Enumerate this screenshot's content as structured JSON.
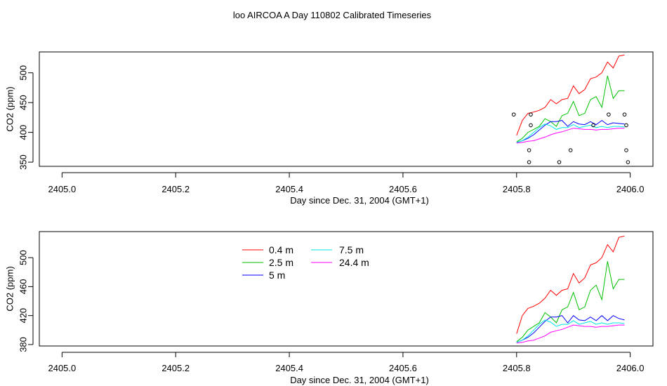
{
  "title": "loo AIRCOA A  Day 110802  Calibrated Timeseries",
  "chart_data": [
    {
      "type": "line",
      "xlabel": "Day since Dec. 31, 2004 (GMT+1)",
      "ylabel": "CO2 (ppm)",
      "xlim": [
        2404.96,
        2406.04
      ],
      "ylim": [
        343,
        535
      ],
      "xticks": [
        "2405.0",
        "2405.2",
        "2405.4",
        "2405.6",
        "2405.8",
        "2406.0"
      ],
      "yticks": [
        "350",
        "400",
        "450",
        "500"
      ],
      "colors": [
        "#ff0000",
        "#00c000",
        "#0000ff",
        "#00e5e5",
        "#ff00ff"
      ],
      "x": [
        2405.8,
        2405.81,
        2405.82,
        2405.83,
        2405.84,
        2405.85,
        2405.86,
        2405.87,
        2405.88,
        2405.89,
        2405.9,
        2405.91,
        2405.92,
        2405.93,
        2405.94,
        2405.95,
        2405.96,
        2405.97,
        2405.98,
        2405.99
      ],
      "series": [
        {
          "values": [
            395,
            420,
            432,
            434,
            437,
            442,
            455,
            448,
            455,
            457,
            478,
            465,
            472,
            490,
            493,
            500,
            518,
            508,
            528,
            530
          ]
        },
        {
          "values": [
            384,
            390,
            400,
            405,
            410,
            423,
            418,
            410,
            428,
            432,
            452,
            428,
            432,
            455,
            460,
            442,
            495,
            457,
            470,
            470
          ]
        },
        {
          "values": [
            383,
            386,
            390,
            396,
            404,
            412,
            418,
            418,
            420,
            410,
            418,
            414,
            413,
            418,
            413,
            420,
            413,
            416,
            415,
            414
          ]
        },
        {
          "values": [
            383,
            386,
            392,
            400,
            408,
            414,
            411,
            405,
            408,
            408,
            413,
            408,
            410,
            412,
            408,
            410,
            408,
            410,
            410,
            409
          ]
        },
        {
          "values": [
            382,
            383,
            385,
            386,
            389,
            392,
            396,
            399,
            401,
            404,
            407,
            406,
            405,
            405,
            404,
            405,
            405,
            406,
            407,
            407
          ]
        }
      ],
      "points": [
        {
          "x": 2405.795,
          "y": 430
        },
        {
          "x": 2405.825,
          "y": 430
        },
        {
          "x": 2405.825,
          "y": 412
        },
        {
          "x": 2405.822,
          "y": 370
        },
        {
          "x": 2405.822,
          "y": 350
        },
        {
          "x": 2405.875,
          "y": 350
        },
        {
          "x": 2405.895,
          "y": 370
        },
        {
          "x": 2405.935,
          "y": 412
        },
        {
          "x": 2405.962,
          "y": 430
        },
        {
          "x": 2405.99,
          "y": 430
        },
        {
          "x": 2405.993,
          "y": 412
        },
        {
          "x": 2405.993,
          "y": 370
        },
        {
          "x": 2405.996,
          "y": 350
        }
      ]
    },
    {
      "type": "line",
      "xlabel": "Day since Dec. 31, 2004 (GMT+1)",
      "ylabel": "CO2 (ppm)",
      "xlim": [
        2404.96,
        2406.04
      ],
      "ylim": [
        378,
        536
      ],
      "xticks": [
        "2405.0",
        "2405.2",
        "2405.4",
        "2405.6",
        "2405.8",
        "2406.0"
      ],
      "yticks": [
        "380",
        "420",
        "460",
        "500"
      ],
      "legend": {
        "position": "top-center",
        "entries": [
          {
            "label": "0.4 m",
            "color": "#ff0000"
          },
          {
            "label": "2.5 m",
            "color": "#00c000"
          },
          {
            "label": "5 m",
            "color": "#0000ff"
          },
          {
            "label": "7.5 m",
            "color": "#00e5e5"
          },
          {
            "label": "24.4 m",
            "color": "#ff00ff"
          }
        ]
      },
      "x": [
        2405.8,
        2405.81,
        2405.82,
        2405.83,
        2405.84,
        2405.85,
        2405.86,
        2405.87,
        2405.88,
        2405.89,
        2405.9,
        2405.91,
        2405.92,
        2405.93,
        2405.94,
        2405.95,
        2405.96,
        2405.97,
        2405.98,
        2405.99
      ],
      "series": [
        {
          "name": "0.4 m",
          "values": [
            395,
            420,
            430,
            433,
            437,
            444,
            455,
            448,
            455,
            457,
            478,
            465,
            472,
            490,
            493,
            500,
            518,
            508,
            528,
            530
          ]
        },
        {
          "name": "2.5 m",
          "values": [
            384,
            390,
            400,
            405,
            410,
            424,
            418,
            410,
            428,
            432,
            452,
            428,
            432,
            455,
            462,
            442,
            495,
            457,
            470,
            470
          ]
        },
        {
          "name": "5 m",
          "values": [
            383,
            386,
            390,
            396,
            404,
            412,
            418,
            418,
            420,
            410,
            420,
            414,
            413,
            418,
            413,
            420,
            413,
            420,
            416,
            414
          ]
        },
        {
          "name": "7.5 m",
          "values": [
            383,
            386,
            392,
            400,
            408,
            414,
            411,
            405,
            408,
            408,
            413,
            408,
            410,
            412,
            408,
            410,
            408,
            410,
            410,
            409
          ]
        },
        {
          "name": "24.4 m",
          "values": [
            382,
            383,
            385,
            386,
            389,
            392,
            397,
            399,
            401,
            404,
            407,
            406,
            405,
            405,
            404,
            405,
            405,
            406,
            407,
            407
          ]
        }
      ]
    }
  ]
}
